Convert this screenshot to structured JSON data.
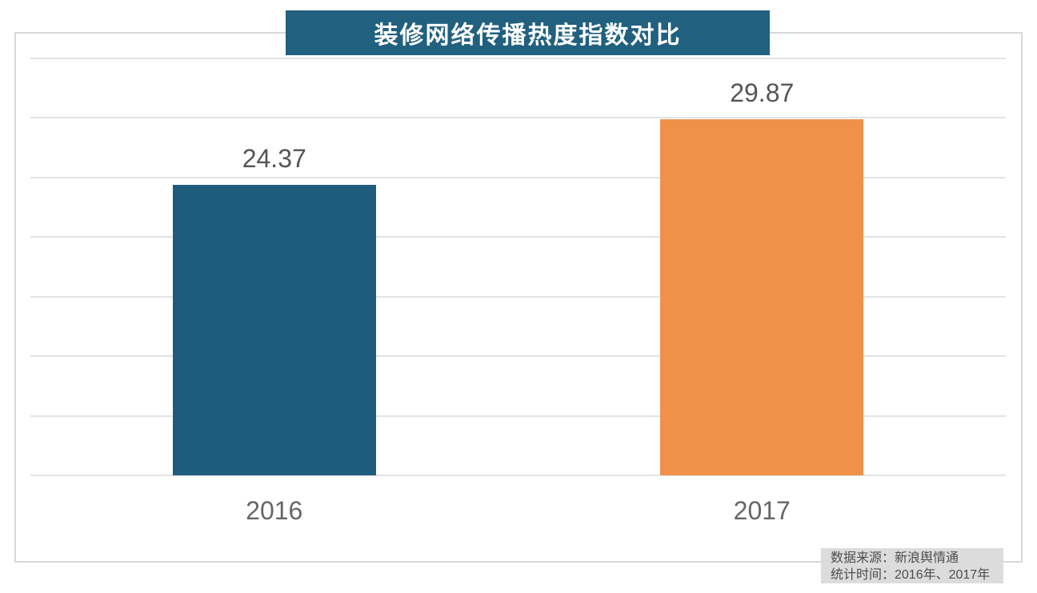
{
  "title": "装修网络传播热度指数对比",
  "chart_data": {
    "type": "bar",
    "title": "装修网络传播热度指数对比",
    "categories": [
      "2016",
      "2017"
    ],
    "values": [
      24.37,
      29.87
    ],
    "value_labels": [
      "24.37",
      "29.87"
    ],
    "bar_colors": [
      "#1E5C7E",
      "#F0914A"
    ],
    "ylim": [
      0,
      35
    ],
    "grid_step": 5,
    "grid": "on",
    "legend": "none",
    "xlabel": "",
    "ylabel": "",
    "y_axis_tick_labels_visible": false
  },
  "source_note": {
    "line1": "数据来源：新浪舆情通",
    "line2": "统计时间：2016年、2017年"
  },
  "colors": {
    "banner_bg": "#21607F",
    "banner_text": "#FFFFFF",
    "gridline": "#E3E3E3",
    "frame_border": "#D8D8D8",
    "value_label": "#555555",
    "category_label": "#666666",
    "source_bg": "#DCDCDC",
    "source_text": "#4D4D4D"
  }
}
